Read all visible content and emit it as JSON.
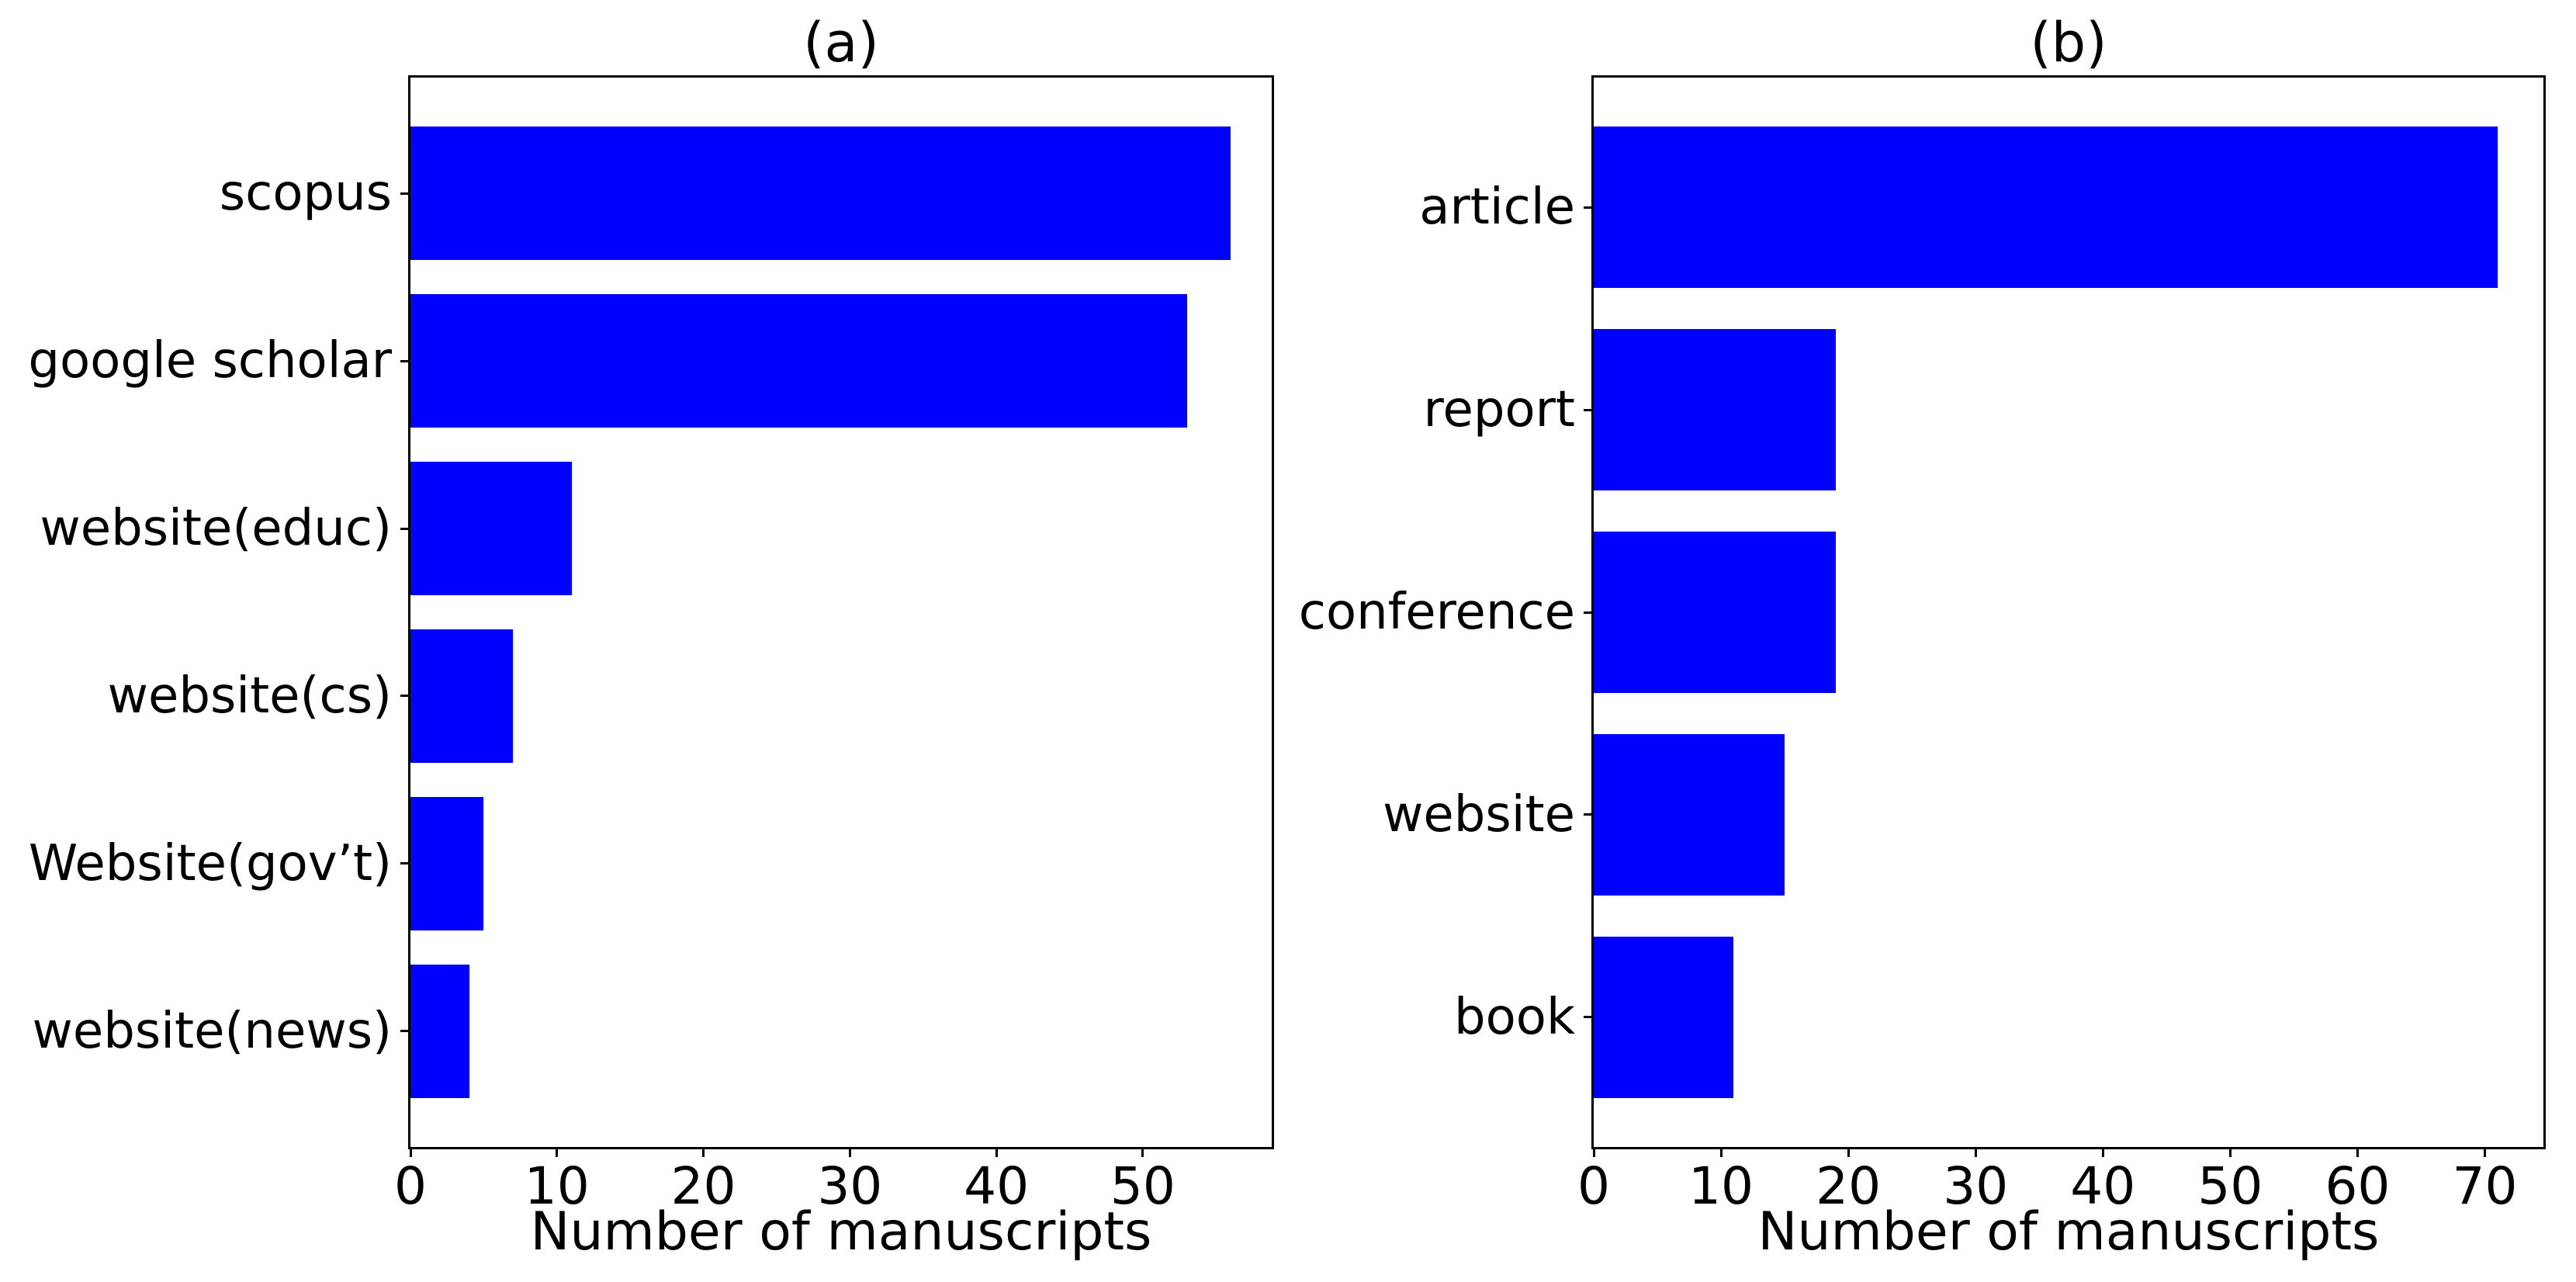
{
  "figure": {
    "background_color": "#ffffff",
    "axis_color": "#000000",
    "bar_color": "#0000ff"
  },
  "chart_data": [
    {
      "type": "bar",
      "orientation": "horizontal",
      "title": "(a)",
      "categories": [
        "scopus",
        "google scholar",
        "website(educ)",
        "website(cs)",
        "Website(gov’t)",
        "website(news)"
      ],
      "values": [
        56,
        53,
        11,
        7,
        5,
        4
      ],
      "xlabel": "Number of manuscripts",
      "ylabel": "",
      "xticks": [
        0,
        10,
        20,
        30,
        40,
        50
      ],
      "xlim": [
        0,
        58.8
      ],
      "bar_color": "#0000ff",
      "grid": false,
      "legend": null
    },
    {
      "type": "bar",
      "orientation": "horizontal",
      "title": "(b)",
      "categories": [
        "article",
        "report",
        "conference",
        "website",
        "book"
      ],
      "values": [
        71,
        19,
        19,
        15,
        11
      ],
      "xlabel": "Number of manuscripts",
      "ylabel": "",
      "xticks": [
        0,
        10,
        20,
        30,
        40,
        50,
        60,
        70
      ],
      "xlim": [
        0,
        74.6
      ],
      "bar_color": "#0000ff",
      "grid": false,
      "legend": null
    }
  ]
}
